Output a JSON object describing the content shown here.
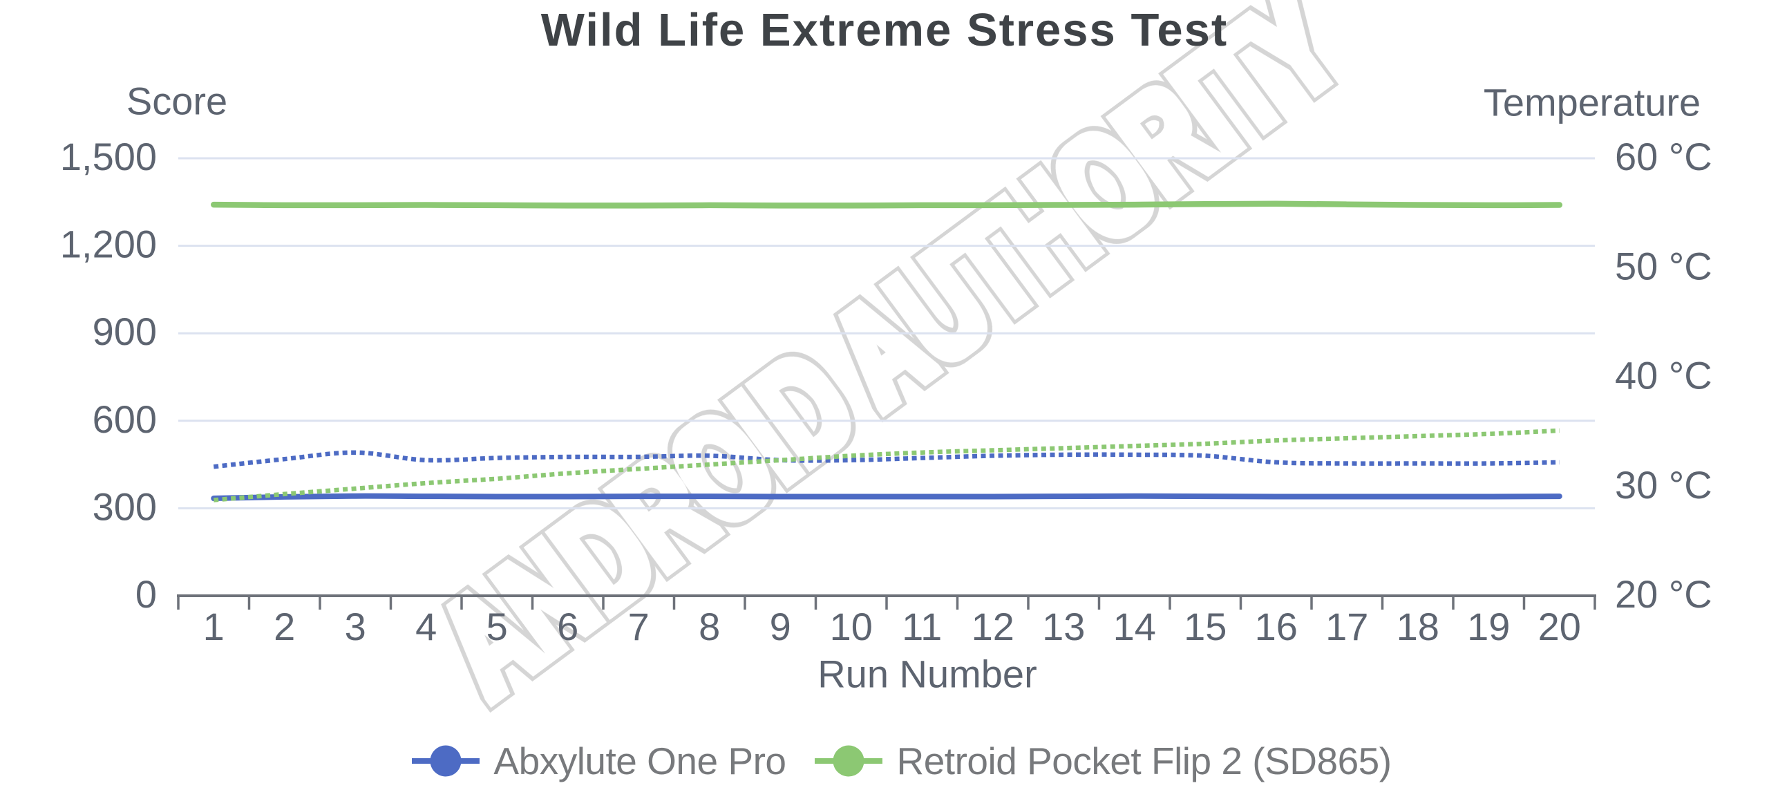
{
  "title": "Wild Life Extreme Stress Test",
  "watermark": {
    "text": "ANDROID AUTHORITY"
  },
  "colors": {
    "background": "#ffffff",
    "title_text": "#3f4347",
    "axis_text": "#5d6470",
    "legend_text": "#77797c",
    "gridline": "#dce2f0",
    "axis_line": "#6e727a",
    "watermark_stroke": "#d5d5d5",
    "series_blue": "#4d6bc4",
    "series_green": "#8cc873"
  },
  "chart_data": {
    "type": "line",
    "title": "Wild Life Extreme Stress Test",
    "xlabel": "Run Number",
    "x": [
      1,
      2,
      3,
      4,
      5,
      6,
      7,
      8,
      9,
      10,
      11,
      12,
      13,
      14,
      15,
      16,
      17,
      18,
      19,
      20
    ],
    "x_tick_labels": [
      "1",
      "2",
      "3",
      "4",
      "5",
      "6",
      "7",
      "8",
      "9",
      "10",
      "11",
      "12",
      "13",
      "14",
      "15",
      "16",
      "17",
      "18",
      "19",
      "20"
    ],
    "axes": {
      "left": {
        "title": "Score",
        "min": 0,
        "max": 1500,
        "tick_values": [
          0,
          300,
          600,
          900,
          1200,
          1500
        ],
        "tick_labels": [
          "0",
          "300",
          "600",
          "900",
          "1,200",
          "1,500"
        ]
      },
      "right": {
        "title": "Temperature",
        "min": 20,
        "max": 60,
        "tick_values": [
          20,
          30,
          40,
          50,
          60
        ],
        "tick_labels": [
          "20 °C",
          "30 °C",
          "40 °C",
          "50 °C",
          "60 °C"
        ]
      }
    },
    "grid": "horizontal-only",
    "legend_position": "bottom-center",
    "series": [
      {
        "name": "Abxylute One Pro (score)",
        "axis": "left",
        "style": "solid",
        "color": "#4d6bc4",
        "width": 8,
        "values": [
          334,
          339,
          342,
          341,
          340,
          340,
          341,
          341,
          340,
          340,
          340,
          340,
          341,
          342,
          341,
          340,
          340,
          340,
          340,
          341
        ]
      },
      {
        "name": "Retroid Pocket Flip 2 (SD865) (score)",
        "axis": "left",
        "style": "solid",
        "color": "#8cc873",
        "width": 8.5,
        "values": [
          1341,
          1339,
          1339,
          1340,
          1339,
          1338,
          1338,
          1339,
          1338,
          1338,
          1339,
          1339,
          1340,
          1341,
          1343,
          1344,
          1342,
          1340,
          1339,
          1340
        ]
      },
      {
        "name": "Abxylute One Pro (temperature)",
        "axis": "right",
        "style": "dotted",
        "color": "#4d6bc4",
        "width": 6.5,
        "values": [
          31.8,
          32.5,
          33.1,
          32.4,
          32.6,
          32.7,
          32.7,
          32.8,
          32.4,
          32.4,
          32.6,
          32.8,
          32.9,
          32.9,
          32.8,
          32.2,
          32.1,
          32.1,
          32.1,
          32.2
        ]
      },
      {
        "name": "Retroid Pocket Flip 2 (SD865) (temperature)",
        "axis": "right",
        "style": "dotted",
        "color": "#8cc873",
        "width": 6.5,
        "values": [
          28.75,
          29.3,
          29.8,
          30.3,
          30.7,
          31.2,
          31.6,
          32.0,
          32.4,
          32.8,
          33.1,
          33.3,
          33.5,
          33.7,
          33.9,
          34.2,
          34.4,
          34.6,
          34.8,
          35.1
        ]
      }
    ],
    "legend": [
      {
        "label": "Abxylute One Pro",
        "color": "#4d6bc4"
      },
      {
        "label": "Retroid Pocket Flip 2 (SD865)",
        "color": "#8cc873"
      }
    ]
  }
}
